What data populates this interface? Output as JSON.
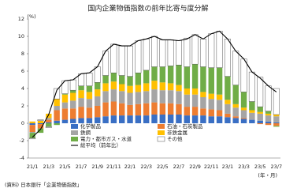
{
  "chart_data": {
    "type": "bar",
    "title": "国内企業物価指数の前年比寄与度分解",
    "y_unit": "(%)",
    "x_unit": "(年・月)",
    "source": "(資料) 日本銀行「企業物価指数」",
    "stacked": true,
    "grid": false,
    "legend": "lower center",
    "categories": [
      "21/1",
      null,
      "21/3",
      null,
      "21/5",
      null,
      "21/7",
      null,
      "21/9",
      null,
      "21/11",
      null,
      "22/1",
      null,
      "22/3",
      null,
      "22/5",
      null,
      "22/7",
      null,
      "22/9",
      null,
      "22/11",
      null,
      "23/1",
      null,
      "23/3",
      null,
      "23/5",
      null,
      "23/7"
    ],
    "ylim": [
      -4,
      12
    ],
    "yticks": [
      -4,
      -2,
      0,
      2,
      4,
      6,
      8,
      10,
      12
    ],
    "series": [
      {
        "name": "化学製品",
        "color": "#3a6fc4",
        "values": [
          -0.2,
          -0.1,
          0.1,
          0.3,
          0.4,
          0.5,
          0.6,
          0.6,
          0.7,
          0.8,
          0.9,
          0.9,
          0.9,
          0.9,
          0.9,
          1.0,
          1.0,
          1.0,
          1.0,
          0.9,
          0.9,
          0.9,
          0.8,
          0.8,
          0.7,
          0.6,
          0.5,
          0.4,
          0.3,
          0.2,
          0.1
        ]
      },
      {
        "name": "石油・石炭製品",
        "color": "#ed7d31",
        "values": [
          -0.8,
          -0.5,
          0.3,
          1.2,
          1.3,
          1.2,
          1.3,
          1.2,
          1.3,
          1.6,
          1.6,
          1.4,
          1.2,
          1.3,
          1.4,
          1.4,
          1.3,
          1.3,
          1.2,
          1.0,
          1.0,
          0.8,
          0.8,
          0.7,
          0.4,
          0.2,
          0.1,
          0.0,
          -0.1,
          -0.2,
          -0.3
        ]
      },
      {
        "name": "鉄鋼",
        "color": "#a5a5a5",
        "values": [
          -0.1,
          0.0,
          0.2,
          0.5,
          0.7,
          0.9,
          1.0,
          1.0,
          1.1,
          1.3,
          1.4,
          1.4,
          1.4,
          1.4,
          1.4,
          1.5,
          1.5,
          1.5,
          1.5,
          1.4,
          1.4,
          1.3,
          1.2,
          1.2,
          1.1,
          1.0,
          0.9,
          0.8,
          0.8,
          0.7,
          0.7
        ]
      },
      {
        "name": "非鉄金属",
        "color": "#ffc000",
        "values": [
          0.2,
          0.3,
          0.5,
          0.8,
          0.9,
          0.9,
          0.9,
          0.8,
          0.8,
          0.9,
          0.9,
          0.8,
          0.8,
          0.8,
          0.9,
          1.0,
          0.9,
          0.8,
          0.7,
          0.7,
          0.7,
          0.6,
          0.6,
          0.6,
          0.5,
          0.4,
          0.3,
          0.3,
          0.2,
          0.2,
          0.2
        ]
      },
      {
        "name": "電力・都市ガス・水道",
        "color": "#70ad47",
        "values": [
          -0.6,
          -0.5,
          -0.4,
          -0.2,
          0.1,
          0.3,
          0.5,
          0.7,
          0.8,
          0.9,
          1.0,
          1.0,
          1.1,
          1.4,
          1.5,
          1.6,
          1.8,
          2.0,
          2.3,
          2.5,
          2.8,
          2.9,
          3.0,
          3.1,
          2.7,
          2.2,
          1.8,
          1.0,
          0.6,
          0.3,
          -0.1
        ]
      },
      {
        "name": "その他",
        "color": "#ffffff",
        "values": [
          -0.1,
          0.1,
          -0.1,
          1.2,
          1.5,
          1.2,
          1.4,
          1.5,
          1.8,
          2.8,
          3.3,
          3.4,
          3.5,
          3.7,
          3.6,
          3.5,
          3.1,
          3.0,
          2.8,
          3.3,
          3.4,
          3.2,
          3.9,
          4.2,
          4.3,
          3.9,
          3.8,
          3.4,
          3.4,
          2.9,
          3.0
        ]
      },
      {
        "name": "総平均（前年比）",
        "type": "line",
        "color": "#000000",
        "values": [
          -1.6,
          -0.7,
          1.0,
          3.8,
          4.9,
          5.0,
          5.7,
          5.8,
          6.5,
          8.3,
          9.1,
          8.9,
          8.9,
          9.5,
          9.7,
          10.0,
          9.6,
          9.6,
          9.5,
          9.7,
          10.2,
          9.7,
          10.3,
          10.6,
          9.7,
          8.3,
          7.4,
          5.9,
          5.2,
          4.3,
          3.6
        ]
      }
    ]
  }
}
